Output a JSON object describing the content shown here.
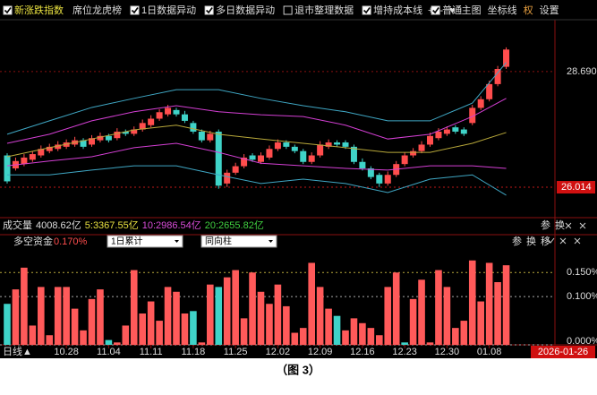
{
  "toolbar": {
    "items": [
      {
        "text": "新涨跌指数",
        "checked": true
      },
      {
        "text": "席位龙虎榜"
      },
      {
        "text": "1日数据异动",
        "checked": true
      },
      {
        "text": "多日数据异动",
        "checked": true
      },
      {
        "text": "退市整理数据",
        "checked": false
      },
      {
        "text": "增持成本线",
        "checked": true
      },
      {
        "text": "普通",
        "checked": true
      }
    ],
    "buttons": [
      "+",
      "-",
      "♥",
      "主图",
      "坐标线",
      "权",
      "设置"
    ]
  },
  "chart_data": [
    {
      "type": "candlestick",
      "up_color": "#ff4d4d",
      "down_color": "#3fd3c8",
      "open": [
        26.75,
        26.45,
        26.55,
        26.65,
        26.75,
        26.85,
        26.9,
        26.95,
        27.0,
        27.1,
        27.0,
        27.1,
        27.2,
        27.15,
        27.3,
        27.25,
        27.35,
        27.45,
        27.6,
        27.7,
        27.8,
        27.7,
        27.5,
        27.3,
        27.1,
        27.3,
        26.1,
        26.35,
        26.5,
        26.75,
        26.6,
        26.7,
        26.9,
        27.05,
        26.95,
        26.85,
        26.6,
        26.75,
        26.95,
        27.05,
        27.05,
        26.95,
        26.6,
        26.45,
        26.3,
        26.1,
        26.3,
        26.55,
        26.75,
        26.85,
        27.0,
        27.15,
        27.25,
        27.4,
        27.35,
        27.5,
        27.85,
        28.05,
        28.4,
        28.8
      ],
      "high": [
        26.8,
        26.7,
        26.78,
        26.85,
        26.98,
        27.02,
        27.08,
        27.12,
        27.18,
        27.15,
        27.22,
        27.28,
        27.25,
        27.38,
        27.35,
        27.42,
        27.58,
        27.68,
        27.82,
        27.92,
        27.85,
        27.78,
        27.55,
        27.35,
        27.32,
        27.35,
        26.42,
        26.58,
        26.78,
        26.8,
        26.82,
        26.98,
        27.12,
        27.1,
        27.0,
        26.9,
        26.82,
        27.08,
        27.12,
        27.1,
        27.1,
        27.0,
        26.68,
        26.5,
        26.35,
        26.38,
        26.62,
        26.82,
        26.92,
        27.08,
        27.28,
        27.38,
        27.42,
        27.45,
        27.4,
        27.92,
        28.12,
        28.48,
        28.82,
        29.25
      ],
      "low": [
        26.1,
        26.4,
        26.5,
        26.6,
        26.7,
        26.8,
        26.85,
        26.9,
        26.95,
        26.9,
        26.95,
        27.05,
        27.05,
        27.1,
        27.2,
        27.2,
        27.3,
        27.4,
        27.55,
        27.65,
        27.65,
        27.5,
        27.25,
        27.05,
        27.05,
        25.98,
        26.02,
        26.3,
        26.45,
        26.6,
        26.55,
        26.65,
        26.85,
        26.9,
        26.8,
        26.55,
        26.55,
        26.7,
        26.9,
        26.95,
        26.9,
        26.55,
        26.4,
        26.2,
        26.02,
        26.05,
        26.25,
        26.5,
        26.7,
        26.8,
        26.95,
        27.1,
        27.2,
        27.25,
        27.2,
        27.45,
        27.8,
        28.0,
        28.35,
        28.75
      ],
      "close": [
        26.15,
        26.62,
        26.7,
        26.78,
        26.9,
        26.95,
        27.0,
        27.05,
        27.1,
        26.95,
        27.15,
        27.2,
        27.1,
        27.3,
        27.25,
        27.35,
        27.5,
        27.6,
        27.75,
        27.85,
        27.7,
        27.55,
        27.3,
        27.1,
        27.25,
        26.05,
        26.35,
        26.5,
        26.7,
        26.65,
        26.75,
        26.9,
        27.05,
        26.95,
        26.85,
        26.6,
        26.75,
        27.0,
        27.05,
        27.0,
        26.95,
        26.6,
        26.45,
        26.25,
        26.1,
        26.3,
        26.55,
        26.75,
        26.85,
        27.0,
        27.2,
        27.3,
        27.35,
        27.3,
        27.25,
        27.85,
        28.05,
        28.4,
        28.75,
        29.2
      ],
      "lines_x": [
        0,
        5,
        10,
        15,
        20,
        25,
        30,
        35,
        40,
        45,
        50,
        55,
        59
      ],
      "lines": [
        {
          "color": "#3fa7c4",
          "values": [
            27.24,
            27.55,
            27.86,
            28.07,
            28.27,
            28.27,
            28.07,
            27.9,
            27.76,
            27.55,
            27.55,
            27.96,
            28.9
          ]
        },
        {
          "color": "#d33fd3",
          "values": [
            27.03,
            27.24,
            27.55,
            27.76,
            27.9,
            27.76,
            27.69,
            27.65,
            27.45,
            27.13,
            27.24,
            27.65,
            28.07
          ]
        },
        {
          "color": "#b8a83a",
          "values": [
            26.72,
            26.93,
            27.13,
            27.34,
            27.45,
            27.24,
            27.13,
            27.03,
            26.93,
            26.82,
            26.82,
            27.03,
            27.28
          ]
        },
        {
          "color": "#d33fd3",
          "values": [
            26.51,
            26.62,
            26.72,
            26.93,
            27.03,
            26.82,
            26.57,
            26.51,
            26.45,
            26.41,
            26.51,
            26.51,
            26.45
          ]
        },
        {
          "color": "#3fa7c4",
          "values": [
            26.3,
            26.3,
            26.41,
            26.51,
            26.51,
            26.3,
            26.1,
            26.2,
            26.1,
            25.89,
            26.2,
            26.3,
            25.83
          ]
        }
      ],
      "ylim": [
        25.31,
        29.89
      ],
      "yticks": [
        {
          "value": 28.69,
          "label": "28.690"
        }
      ],
      "price_marker": 26.014,
      "indicator": {
        "label": "成交量",
        "items": [
          {
            "text": "4008.62亿",
            "color": "#dddddd"
          },
          {
            "text": "5:3367.55亿",
            "color": "#e8e040"
          },
          {
            "text": "10:2986.54亿",
            "color": "#d84cd8"
          },
          {
            "text": "20:2655.82亿",
            "color": "#40d040"
          }
        ]
      },
      "buttons": [
        "参",
        "换"
      ]
    },
    {
      "type": "bar",
      "title": "多空资金",
      "current": "0.170%",
      "selects": [
        "1日累计",
        "同向柱"
      ],
      "buttons": [
        "参",
        "换",
        "移"
      ],
      "values": [
        0.085,
        0.115,
        0.16,
        0.04,
        0.12,
        0.02,
        0.12,
        0.12,
        0.075,
        0.03,
        0.095,
        0.115,
        0.01,
        0.005,
        0.04,
        0.155,
        0.065,
        0.09,
        0.05,
        0.12,
        0.11,
        0.065,
        0.07,
        0.005,
        0.125,
        0.12,
        0.14,
        0.155,
        0.055,
        0.15,
        0.11,
        0.085,
        0.125,
        0.08,
        0.025,
        0.035,
        0.17,
        0.12,
        0.075,
        0.06,
        0.03,
        0.055,
        0.045,
        0.035,
        0.02,
        0.12,
        0.15,
        0.005,
        0.095,
        0.135,
        0.005,
        0.155,
        0.12,
        0.035,
        0.05,
        0.175,
        0.09,
        0.17,
        0.13,
        0.165
      ],
      "colors": [
        "#3fd3c8",
        "#ff5a5a",
        "#ff5a5a",
        "#ff5a5a",
        "#ff5a5a",
        "#ff5a5a",
        "#ff5a5a",
        "#ff5a5a",
        "#ff5a5a",
        "#ff5a5a",
        "#ff5a5a",
        "#ff5a5a",
        "#3fd3c8",
        "#ff5a5a",
        "#ff5a5a",
        "#ff5a5a",
        "#ff5a5a",
        "#ff5a5a",
        "#ff5a5a",
        "#ff5a5a",
        "#ff5a5a",
        "#ff5a5a",
        "#3fd3c8",
        "#ff5a5a",
        "#ff5a5a",
        "#3fd3c8",
        "#ff5a5a",
        "#ff5a5a",
        "#ff5a5a",
        "#ff5a5a",
        "#ff5a5a",
        "#ff5a5a",
        "#ff5a5a",
        "#ff5a5a",
        "#ff5a5a",
        "#ff5a5a",
        "#ff5a5a",
        "#ff5a5a",
        "#ff5a5a",
        "#3fd3c8",
        "#ff5a5a",
        "#ff5a5a",
        "#ff5a5a",
        "#ff5a5a",
        "#ff5a5a",
        "#ff5a5a",
        "#ff5a5a",
        "#3fd3c8",
        "#ff5a5a",
        "#ff5a5a",
        "#ff5a5a",
        "#ff5a5a",
        "#ff5a5a",
        "#ff5a5a",
        "#ff5a5a",
        "#ff5a5a",
        "#ff5a5a",
        "#ff5a5a",
        "#ff5a5a",
        "#ff5a5a"
      ],
      "ylim": [
        0,
        0.195
      ],
      "yticks": [
        {
          "value": 0.15,
          "label": "0.150%"
        },
        {
          "value": 0.1,
          "label": "0.100%"
        },
        {
          "value": 0,
          "label": "0.000%"
        }
      ],
      "xticks": [
        {
          "value": 7,
          "label": "10.28"
        },
        {
          "value": 12,
          "label": "11.04"
        },
        {
          "value": 17,
          "label": "11.11"
        },
        {
          "value": 22,
          "label": "11.18"
        },
        {
          "value": 27,
          "label": "11.25"
        },
        {
          "value": 32,
          "label": "12.02"
        },
        {
          "value": 37,
          "label": "12.09"
        },
        {
          "value": 42,
          "label": "12.16"
        },
        {
          "value": 47,
          "label": "12.23"
        },
        {
          "value": 52,
          "label": "12.30"
        },
        {
          "value": 57,
          "label": "01.08"
        }
      ],
      "period": "日线▲",
      "current_date": "2026-01-26"
    }
  ],
  "caption": "（图 3）"
}
